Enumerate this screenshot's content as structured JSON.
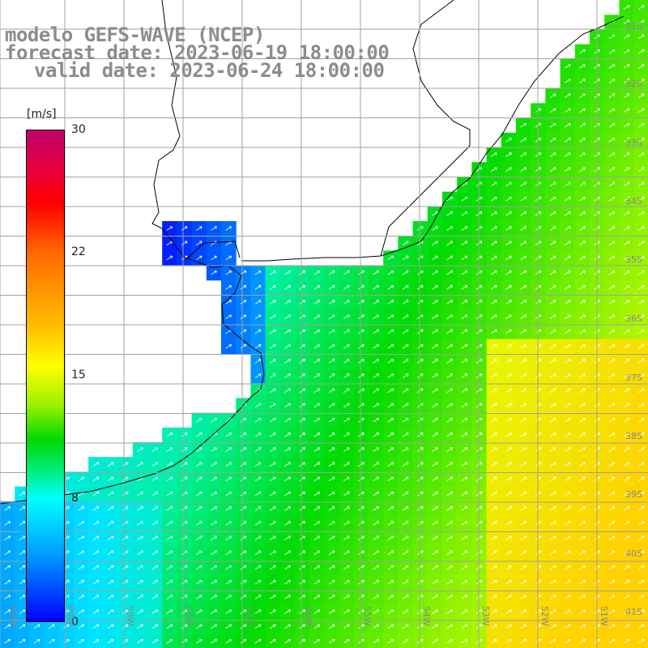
{
  "title": {
    "line1": "modelo GEFS-WAVE (NCEP)",
    "line2": "forecast date: 2023-06-19 18:00:00",
    "line3": "valid date: 2023-06-24 18:00:00"
  },
  "colorbar": {
    "unit": "[m/s]",
    "ticks": [
      "30",
      "22",
      "15",
      "8",
      "0"
    ],
    "colors": [
      "#c0006b",
      "#ff0000",
      "#ffbf00",
      "#ffff00",
      "#00d800",
      "#00ffff",
      "#00a0ff",
      "#0000ff"
    ]
  },
  "lat_labels": [
    "31S",
    "32S",
    "33S",
    "34S",
    "35S",
    "36S",
    "37S",
    "38S",
    "39S",
    "40S",
    "41S"
  ],
  "lon_labels": [
    "61W",
    "60W",
    "59W",
    "58W",
    "57W",
    "56W",
    "55W",
    "54W",
    "53W",
    "52W",
    "51W"
  ],
  "land_color": "#ffffff",
  "grid_color": "#a0a0a0",
  "arrow_color": "#ffffff",
  "icons": [
    "wind-arrow-icon"
  ]
}
